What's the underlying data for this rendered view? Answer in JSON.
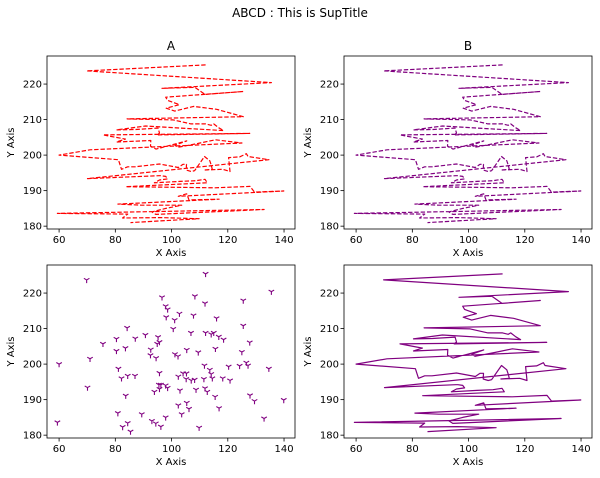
{
  "chart_data": {
    "type": "multi-panel",
    "suptitle": "ABCD : This is SupTitle",
    "x": [
      112.1,
      69.8,
      135.5,
      96.6,
      108.3,
      111.9,
      125.5,
      97.9,
      98.6,
      102.8,
      98.1,
      101.1,
      107.8,
      116.0,
      125.5,
      84.2,
      100.6,
      106.9,
      112.1,
      114.1,
      115.0,
      116.8,
      118.5,
      90.7,
      80.4,
      87.1,
      95.2,
      95.7,
      94.9,
      127.8,
      75.6,
      83.6,
      80.4,
      92.6,
      92.5,
      94.5,
      105.4,
      101.2,
      102.3,
      109.5,
      115.6,
      125.0,
      71.0,
      60.0,
      81.1,
      82.2,
      84.4,
      87.0,
      95.7,
      102.4,
      104.1,
      105.3,
      105.2,
      107.0,
      108.2,
      111.7,
      113.6,
      114.1,
      114.5,
      111.5,
      118.2,
      120.8,
      120.3,
      124.2,
      126.6,
      127.2,
      134.6,
      70.1,
      95.5,
      96.2,
      97.9,
      98.6,
      95.7,
      93.9,
      103.0,
      108.7,
      111.9,
      112.7,
      83.7,
      115.5,
      127.9,
      129.5,
      139.9,
      102.4,
      105.4,
      106.2,
      116.9,
      80.9,
      89.4,
      103.6,
      97.9,
      93.0,
      94.4,
      132.9,
      59.4,
      84.4,
      82.6,
      96.2,
      109.8,
      85.4
    ],
    "y": [
      225.4,
      223.7,
      220.4,
      218.8,
      219.1,
      217.1,
      217.9,
      216.3,
      215.4,
      214.2,
      213.2,
      212.4,
      213.7,
      212.9,
      210.8,
      210.2,
      209.9,
      208.8,
      208.8,
      208.4,
      208.8,
      207.7,
      206.9,
      208.2,
      207.1,
      207.2,
      207.6,
      206.2,
      205.7,
      206.1,
      205.7,
      204.5,
      203.7,
      204.1,
      202.5,
      201.7,
      204.0,
      202.8,
      202.2,
      203.3,
      204.3,
      203.4,
      201.5,
      200.0,
      198.7,
      196.0,
      196.7,
      196.7,
      197.5,
      196.5,
      197.4,
      197.4,
      195.8,
      195.4,
      195.6,
      199.6,
      198.4,
      197.2,
      196.0,
      195.8,
      196.0,
      195.4,
      199.3,
      199.5,
      200.4,
      199.6,
      198.7,
      193.4,
      194.2,
      194.2,
      194.0,
      193.3,
      193.0,
      192.2,
      192.6,
      192.8,
      193.2,
      192.2,
      191.1,
      190.8,
      191.2,
      189.6,
      189.9,
      188.4,
      189.1,
      187.4,
      187.6,
      186.2,
      185.9,
      185.9,
      185.0,
      184.0,
      183.3,
      184.7,
      183.6,
      183.4,
      182.3,
      182.4,
      182.1,
      181.0
    ],
    "xlim": [
      55.7,
      143.9
    ],
    "ylim": [
      179.2,
      227.9
    ],
    "xticks": [
      60,
      80,
      100,
      120,
      140
    ],
    "yticks": [
      180,
      190,
      200,
      210,
      220
    ],
    "subplots": [
      {
        "title": "A",
        "type": "line",
        "style": "dashed",
        "color": "#ff0000",
        "xlabel": "X Axis",
        "ylabel": "Y Axis"
      },
      {
        "title": "B",
        "type": "line",
        "style": "dashed",
        "color": "#800080",
        "xlabel": "X Axis",
        "ylabel": "Y Axis"
      },
      {
        "title": "",
        "type": "scatter",
        "marker": "tri_down",
        "color": "#800080",
        "xlabel": "X Axis",
        "ylabel": "Y Axis"
      },
      {
        "title": "",
        "type": "line",
        "style": "solid",
        "color": "#800080",
        "xlabel": "X Axis",
        "ylabel": "Y Axis"
      }
    ]
  }
}
